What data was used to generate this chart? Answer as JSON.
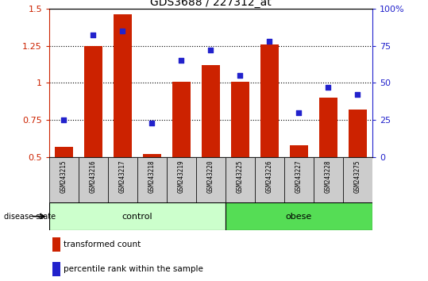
{
  "title": "GDS3688 / 227312_at",
  "samples": [
    "GSM243215",
    "GSM243216",
    "GSM243217",
    "GSM243218",
    "GSM243219",
    "GSM243220",
    "GSM243225",
    "GSM243226",
    "GSM243227",
    "GSM243228",
    "GSM243275"
  ],
  "transformed_count": [
    0.57,
    1.25,
    1.46,
    0.52,
    1.01,
    1.12,
    1.01,
    1.26,
    0.58,
    0.9,
    0.82
  ],
  "percentile_rank": [
    25,
    82,
    85,
    23,
    65,
    72,
    55,
    78,
    30,
    47,
    42
  ],
  "bar_color": "#cc2200",
  "dot_color": "#2222cc",
  "ylim_left": [
    0.5,
    1.5
  ],
  "ylim_right": [
    0,
    100
  ],
  "yticks_left": [
    0.5,
    0.75,
    1.0,
    1.25,
    1.5
  ],
  "ytick_labels_left": [
    "0.5",
    "0.75",
    "1",
    "1.25",
    "1.5"
  ],
  "yticks_right": [
    0,
    25,
    50,
    75,
    100
  ],
  "ytick_labels_right": [
    "0",
    "25",
    "50",
    "75",
    "100%"
  ],
  "n_control": 6,
  "n_obese": 5,
  "group_label_control": "control",
  "group_label_obese": "obese",
  "disease_state_label": "disease state",
  "legend_bar_label": "transformed count",
  "legend_dot_label": "percentile rank within the sample",
  "control_color": "#ccffcc",
  "obese_color": "#55dd55",
  "sample_box_color": "#cccccc",
  "bar_width": 0.6
}
